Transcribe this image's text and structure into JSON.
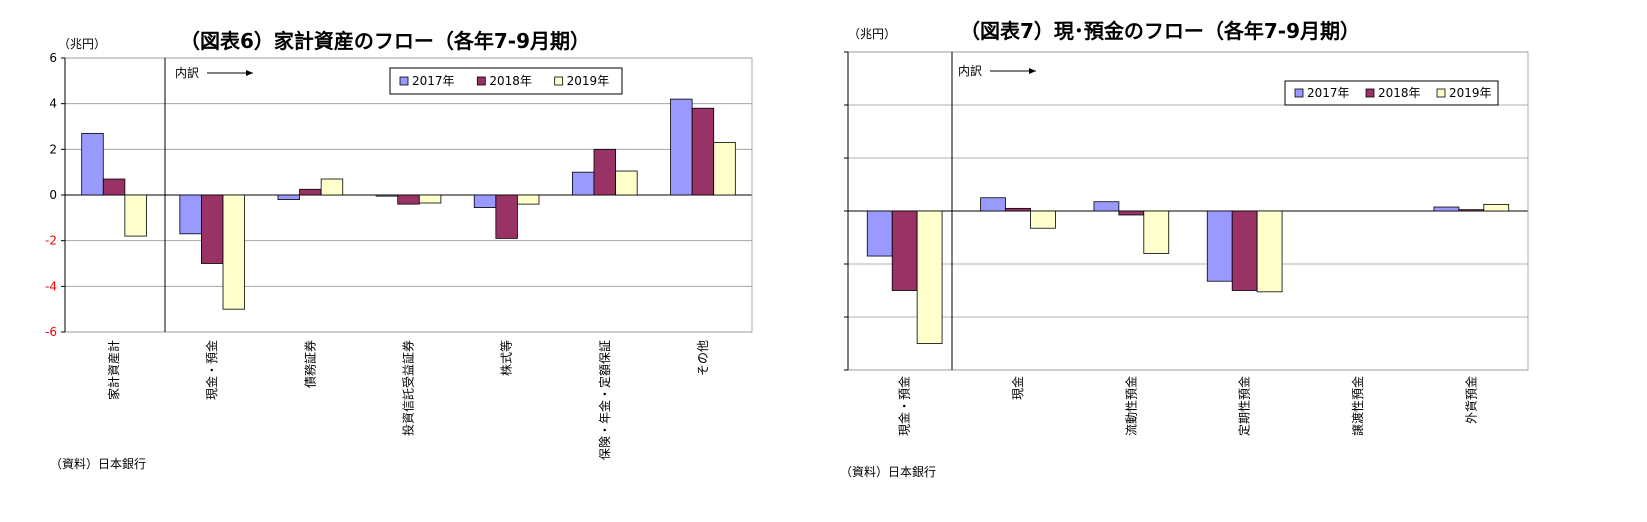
{
  "charts": [
    {
      "title": "（図表6）家計資産のフロー（各年7-9月期）",
      "unit": "（兆円）",
      "source": "（資料）日本銀行",
      "breakdown_label": "内訳",
      "legend": [
        "2017年",
        "2018年",
        "2019年"
      ]
    },
    {
      "title": "（図表7）現･預金のフロー（各年7-9月期）",
      "unit": "（兆円）",
      "source": "（資料）日本銀行",
      "breakdown_label": "内訳",
      "legend": [
        "2017年",
        "2018年",
        "2019年"
      ]
    }
  ],
  "colors": {
    "2017": "#9999ff",
    "2018": "#993366",
    "2019": "#ffffcc",
    "zero_tick_red": "#ff0000"
  },
  "chart_data": [
    {
      "type": "bar",
      "title": "（図表6）家計資産のフロー（各年7-9月期）",
      "ylabel": "（兆円）",
      "ylim": [
        -6,
        6
      ],
      "yticks": [
        "-6",
        "-4",
        "-2",
        "0",
        "2",
        "4",
        "6"
      ],
      "grid": true,
      "legend_position": "top-right",
      "categories": [
        "家計資産計",
        "現金・預金",
        "債務証券",
        "投資信託受益証券",
        "株式等",
        "保険・年金・定額保証",
        "その他"
      ],
      "series": [
        {
          "name": "2017年",
          "values": [
            2.7,
            -1.7,
            -0.2,
            -0.05,
            -0.55,
            1.0,
            4.2
          ]
        },
        {
          "name": "2018年",
          "values": [
            0.7,
            -3.0,
            0.25,
            -0.4,
            -1.9,
            2.0,
            3.8
          ]
        },
        {
          "name": "2019年",
          "values": [
            -1.8,
            -5.0,
            0.7,
            -0.35,
            -0.4,
            1.05,
            2.3
          ]
        }
      ]
    },
    {
      "type": "bar",
      "title": "（図表7）現･預金のフロー（各年7-9月期）",
      "ylabel": "（兆円）",
      "ylim": [
        -6,
        6
      ],
      "yticks": [
        "-6",
        "-4",
        "-2",
        "0",
        "2",
        "4",
        "6"
      ],
      "grid": true,
      "legend_position": "top-right",
      "categories": [
        "現金・預金",
        "現金",
        "流動性預金",
        "定期性預金",
        "譲渡性預金",
        "外貨預金"
      ],
      "series": [
        {
          "name": "2017年",
          "values": [
            -1.7,
            0.5,
            0.35,
            -2.65,
            0.0,
            0.15
          ]
        },
        {
          "name": "2018年",
          "values": [
            -3.0,
            0.1,
            -0.15,
            -3.0,
            0.0,
            0.05
          ]
        },
        {
          "name": "2019年",
          "values": [
            -5.0,
            -0.65,
            -1.6,
            -3.05,
            0.0,
            0.25
          ]
        }
      ]
    }
  ]
}
